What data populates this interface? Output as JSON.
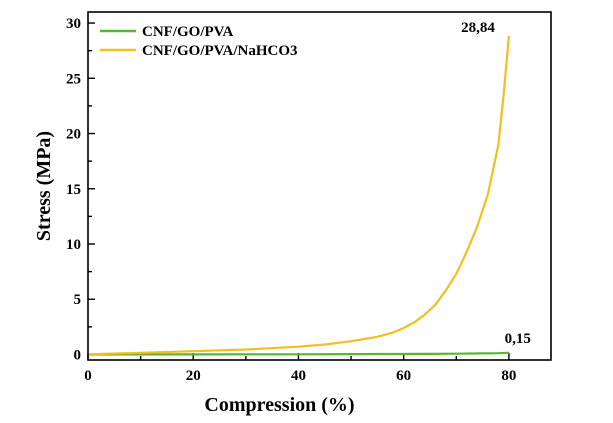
{
  "chart_data": {
    "type": "line",
    "title": "",
    "xlabel": "Compression (%)",
    "ylabel": "Stress (MPa)",
    "xlim": [
      0,
      88
    ],
    "ylim": [
      -0.5,
      31
    ],
    "xticks": [
      0,
      20,
      40,
      60,
      80
    ],
    "yticks": [
      0,
      5,
      10,
      15,
      20,
      25,
      30
    ],
    "series": [
      {
        "name": "CNF/GO/PVA",
        "color": "#5ab52e",
        "x": [
          0,
          10,
          20,
          30,
          40,
          50,
          58,
          65,
          70,
          75,
          78,
          80
        ],
        "y": [
          0.0,
          0.01,
          0.01,
          0.02,
          0.02,
          0.03,
          0.04,
          0.05,
          0.07,
          0.1,
          0.12,
          0.15
        ]
      },
      {
        "name": "CNF/GO/PVA/NaHCO3",
        "color": "#f3be1e",
        "x": [
          0,
          10,
          20,
          30,
          40,
          45,
          50,
          55,
          58,
          60,
          62,
          64,
          66,
          68,
          70,
          72,
          74,
          76,
          78,
          79,
          80
        ],
        "y": [
          0.02,
          0.15,
          0.3,
          0.45,
          0.7,
          0.9,
          1.2,
          1.6,
          2.0,
          2.4,
          2.9,
          3.6,
          4.5,
          5.8,
          7.3,
          9.3,
          11.6,
          14.5,
          19.0,
          23.5,
          28.84
        ]
      }
    ],
    "legend": {
      "position": "top-left",
      "entries": [
        "CNF/GO/PVA",
        "CNF/GO/PVA/NaHCO3"
      ]
    },
    "annotations": [
      {
        "text": "28,84",
        "x": 80,
        "y": 28.84
      },
      {
        "text": "0,15",
        "x": 80,
        "y": 0.15
      }
    ]
  }
}
